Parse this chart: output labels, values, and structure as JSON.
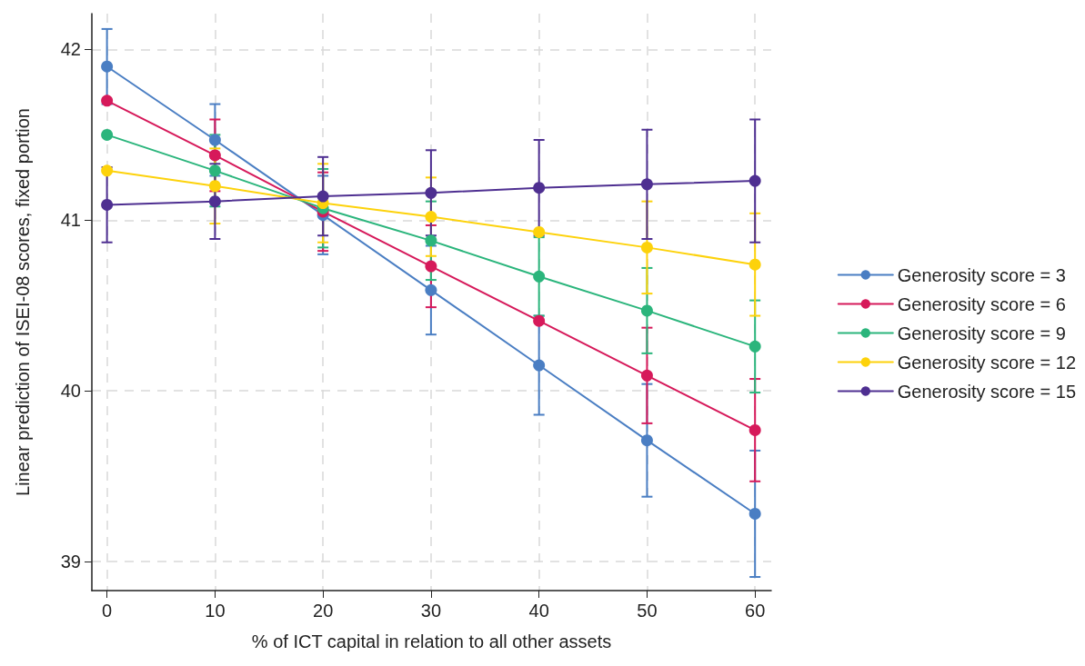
{
  "chart_data": {
    "type": "line",
    "xlabel": "% of ICT capital in relation to all other assets",
    "ylabel": "Linear prediction of ISEI-08 scores, fixed portion",
    "x": [
      0,
      10,
      20,
      30,
      40,
      50,
      60
    ],
    "series": [
      {
        "name": "Generosity score = 3",
        "color": "#4a7ec3",
        "values": [
          41.9,
          41.47,
          41.03,
          40.59,
          40.15,
          39.71,
          39.28
        ],
        "errors": [
          0.22,
          0.21,
          0.23,
          0.26,
          0.29,
          0.33,
          0.37
        ]
      },
      {
        "name": "Generosity score = 6",
        "color": "#d6195a",
        "values": [
          41.7,
          41.38,
          41.05,
          40.73,
          40.41,
          40.09,
          39.77
        ],
        "errors": [
          null,
          0.21,
          0.23,
          0.24,
          null,
          0.28,
          0.3
        ]
      },
      {
        "name": "Generosity score = 9",
        "color": "#2bb57c",
        "values": [
          41.5,
          41.29,
          41.07,
          40.88,
          40.67,
          40.47,
          40.26
        ],
        "errors": [
          null,
          0.21,
          0.23,
          0.23,
          0.23,
          0.25,
          0.27
        ]
      },
      {
        "name": "Generosity score = 12",
        "color": "#fdd20b",
        "values": [
          41.29,
          41.2,
          41.1,
          41.02,
          40.93,
          40.84,
          40.74
        ],
        "errors": [
          null,
          0.22,
          0.23,
          0.23,
          null,
          0.27,
          0.3
        ]
      },
      {
        "name": "Generosity score = 15",
        "color": "#4e2f91",
        "values": [
          41.09,
          41.11,
          41.14,
          41.16,
          41.19,
          41.21,
          41.23
        ],
        "errors": [
          0.22,
          0.22,
          0.23,
          0.25,
          0.28,
          0.32,
          0.36
        ]
      }
    ],
    "xlim": [
      -1.4,
      61.5
    ],
    "ylim": [
      38.83,
      42.21
    ],
    "xticks": [
      0,
      10,
      20,
      30,
      40,
      50,
      60
    ],
    "yticks": [
      39,
      40,
      41,
      42
    ],
    "grid": true,
    "legend": "right",
    "marker": "circle",
    "line_style": "solid"
  }
}
